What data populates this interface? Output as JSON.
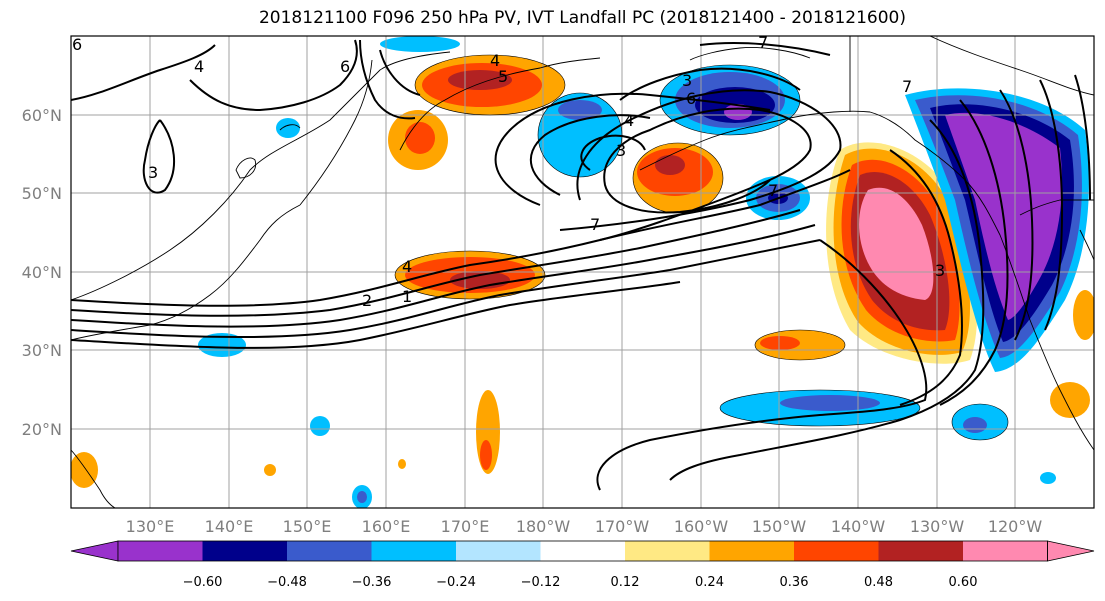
{
  "title": "2018121100 F096 250 hPa PV, IVT Landfall PC (2018121400 - 2018121600)",
  "lat_ticks": [
    "60°N",
    "50°N",
    "40°N",
    "30°N",
    "20°N"
  ],
  "lon_ticks": [
    "130°E",
    "140°E",
    "150°E",
    "160°E",
    "170°E",
    "180°W",
    "170°W",
    "160°W",
    "150°W",
    "140°W",
    "130°W",
    "120°W"
  ],
  "colorbar": {
    "colors": [
      "#9932cc",
      "#00008b",
      "#3a5bcc",
      "#00bfff",
      "#b3e5ff",
      "#ffffff",
      "#ffe984",
      "#ffa500",
      "#ff4500",
      "#b22222",
      "#ff89b0"
    ],
    "labels": [
      "−0.60",
      "−0.48",
      "−0.36",
      "−0.24",
      "−0.12",
      "0.12",
      "0.24",
      "0.36",
      "0.48",
      "0.60"
    ]
  },
  "contour_labels": [
    "6",
    "4",
    "6",
    "7",
    "4",
    "5",
    "3",
    "4",
    "3",
    "6",
    "7",
    "7",
    "4",
    "2",
    "1",
    "7",
    "3",
    "3"
  ]
}
